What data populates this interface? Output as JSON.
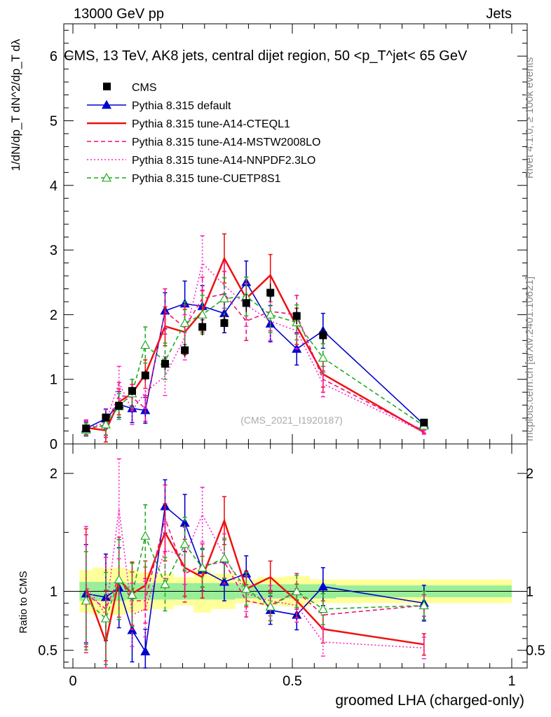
{
  "header": {
    "left": "13000 GeV pp",
    "right": "Jets"
  },
  "side_labels": {
    "rivet": "Rivet 4.1.0, ≥ 100k events",
    "mcplots": "mcplots.cern.ch [arXiv:2401.10621]"
  },
  "chart_data": {
    "type": "scatter",
    "title": "CMS, 13 TeV, AK8 jets, central dijet region, 50 <p_T^jet< 65 GeV",
    "watermark": "(CMS_2021_I1920187)",
    "xlabel": "groomed LHA (charged-only)",
    "ylabel": "1/dN/dp_T  dN^2/dp_T dλ",
    "ratio_ylabel": "Ratio to CMS",
    "xlim": [
      0,
      1
    ],
    "ylim": [
      0,
      6.5
    ],
    "ratio_ylim": [
      0.35,
      2.25
    ],
    "x_ticks": [
      0,
      0.5,
      1
    ],
    "x_tick_labels": [
      "0",
      "0.5",
      "1"
    ],
    "y_ticks": [
      0,
      1,
      2,
      3,
      4,
      5,
      6
    ],
    "y_tick_labels": [
      "0",
      "1",
      "2",
      "3",
      "4",
      "5",
      "6"
    ],
    "ratio_ticks": [
      0.5,
      1,
      2
    ],
    "ratio_tick_labels": [
      "0.5",
      "1",
      "2"
    ],
    "x": [
      0.03,
      0.075,
      0.105,
      0.135,
      0.165,
      0.21,
      0.255,
      0.295,
      0.345,
      0.395,
      0.45,
      0.51,
      0.57,
      0.8
    ],
    "bin_edges": [
      0.015,
      0.045,
      0.09,
      0.12,
      0.15,
      0.18,
      0.23,
      0.275,
      0.315,
      0.37,
      0.42,
      0.48,
      0.54,
      0.6,
      1.0
    ],
    "cms": {
      "name": "CMS",
      "values": [
        0.24,
        0.41,
        0.59,
        0.82,
        1.06,
        1.24,
        1.45,
        1.81,
        1.87,
        2.18,
        2.34,
        1.98,
        1.68,
        0.33
      ],
      "errors": [
        0.03,
        0.04,
        0.05,
        0.07,
        0.08,
        0.1,
        0.1,
        0.13,
        0.12,
        0.14,
        0.14,
        0.13,
        0.12,
        0.03
      ],
      "ratio_stat_band": [
        0.08,
        0.08,
        0.08,
        0.07,
        0.07,
        0.07,
        0.07,
        0.07,
        0.07,
        0.06,
        0.06,
        0.06,
        0.06,
        0.05
      ],
      "ratio_total_band": [
        0.18,
        0.2,
        0.2,
        0.18,
        0.16,
        0.15,
        0.12,
        0.18,
        0.15,
        0.1,
        0.12,
        0.13,
        0.1,
        0.1
      ]
    },
    "series": [
      {
        "name": "Pythia 8.315 default",
        "color": "#0000cc",
        "style": "solid",
        "marker": "triangle-filled",
        "values": [
          0.24,
          0.39,
          0.61,
          0.55,
          0.52,
          2.06,
          2.17,
          2.13,
          2.02,
          2.5,
          1.86,
          1.47,
          1.75,
          0.3
        ],
        "errors": [
          0.1,
          0.15,
          0.2,
          0.22,
          0.2,
          0.28,
          0.35,
          0.32,
          0.3,
          0.33,
          0.28,
          0.25,
          0.27,
          0.05
        ],
        "ratio": [
          0.98,
          0.95,
          1.03,
          0.67,
          0.49,
          1.72,
          1.58,
          1.18,
          1.08,
          1.15,
          0.84,
          0.8,
          1.04,
          0.9
        ]
      },
      {
        "name": "Pythia 8.315 tune-A14-CTEQL1",
        "color": "#ee1111",
        "style": "solid",
        "marker": "none",
        "values": [
          0.25,
          0.21,
          0.65,
          0.78,
          1.08,
          1.82,
          1.73,
          2.05,
          2.87,
          2.25,
          2.61,
          1.82,
          1.08,
          0.18
        ],
        "errors": [
          0.12,
          0.18,
          0.2,
          0.22,
          0.22,
          0.3,
          0.35,
          0.32,
          0.38,
          0.33,
          0.32,
          0.28,
          0.2,
          0.03
        ],
        "ratio": [
          1.03,
          0.57,
          1.1,
          0.98,
          1.05,
          1.5,
          1.2,
          1.12,
          1.6,
          1.02,
          1.12,
          0.92,
          0.68,
          0.55
        ]
      },
      {
        "name": "Pythia 8.315 tune-A14-MSTW2008LO",
        "color": "#ee1177",
        "style": "dashed",
        "marker": "none",
        "values": [
          0.25,
          0.28,
          0.75,
          0.72,
          0.55,
          2.05,
          1.8,
          2.25,
          2.32,
          1.9,
          2.05,
          2.0,
          1.0,
          0.2
        ],
        "errors": [
          0.12,
          0.18,
          0.2,
          0.2,
          0.2,
          0.35,
          0.35,
          0.33,
          0.35,
          0.3,
          0.3,
          0.3,
          0.2,
          0.03
        ],
        "ratio": [
          0.98,
          0.85,
          1.12,
          0.92,
          0.92,
          1.62,
          1.15,
          1.22,
          1.25,
          0.92,
          0.88,
          1.0,
          0.8,
          0.88
        ]
      },
      {
        "name": "Pythia 8.315 tune-A14-NNPDF2.3LO",
        "color": "#ff22cc",
        "style": "dotted",
        "marker": "none",
        "values": [
          0.24,
          0.33,
          0.95,
          0.52,
          0.8,
          1.05,
          1.65,
          2.8,
          2.45,
          2.15,
          1.9,
          1.75,
          0.93,
          0.18
        ],
        "errors": [
          0.12,
          0.2,
          0.25,
          0.22,
          0.25,
          0.3,
          0.35,
          0.42,
          0.35,
          0.33,
          0.3,
          0.28,
          0.2,
          0.03
        ],
        "ratio": [
          1.05,
          0.8,
          1.7,
          0.8,
          0.85,
          1.35,
          1.3,
          1.65,
          1.3,
          0.98,
          0.92,
          0.88,
          0.57,
          0.52
        ]
      },
      {
        "name": "Pythia 8.315 tune-CUETP8S1",
        "color": "#22aa22",
        "style": "dashed",
        "marker": "triangle-open",
        "values": [
          0.22,
          0.3,
          0.58,
          0.78,
          1.53,
          1.28,
          1.87,
          2.0,
          2.25,
          2.28,
          2.0,
          1.88,
          1.33,
          0.28
        ],
        "errors": [
          0.1,
          0.16,
          0.2,
          0.22,
          0.28,
          0.28,
          0.33,
          0.3,
          0.32,
          0.3,
          0.28,
          0.27,
          0.22,
          0.04
        ],
        "ratio": [
          0.92,
          0.77,
          1.1,
          0.97,
          1.47,
          1.06,
          1.4,
          1.2,
          1.28,
          1.02,
          0.87,
          1.0,
          0.85,
          0.88
        ]
      }
    ]
  }
}
